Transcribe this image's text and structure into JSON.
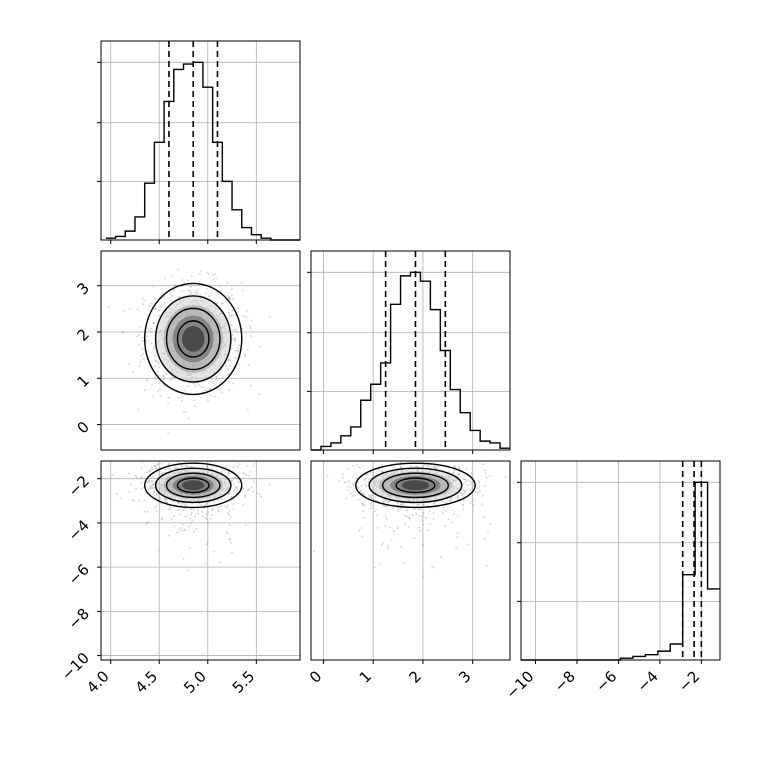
{
  "figure": {
    "title": "",
    "style": {
      "hist_color": "#000000",
      "quantile_color": "#000000",
      "scatter_color": "#9a9a9a",
      "grid_color": "#b0b0b0",
      "background": "#ffffff"
    }
  },
  "chart_data": [
    {
      "type": "histogram",
      "panel": "hist-param1",
      "x": [
        4.0,
        4.1,
        4.2,
        4.3,
        4.4,
        4.5,
        4.6,
        4.7,
        4.8,
        4.9,
        5.0,
        5.1,
        5.2,
        5.3,
        5.4,
        5.5,
        5.6,
        5.7,
        5.8,
        5.9
      ],
      "values": [
        0.01,
        0.02,
        0.05,
        0.13,
        0.32,
        0.55,
        0.78,
        0.96,
        0.99,
        1.0,
        0.86,
        0.55,
        0.33,
        0.17,
        0.07,
        0.03,
        0.01,
        0.0,
        0.0,
        0.0
      ],
      "quantiles": [
        4.6,
        4.85,
        5.1
      ],
      "xlim": [
        3.9,
        5.95
      ],
      "ylim": [
        0,
        1.0
      ],
      "xticks": [
        4.0,
        4.5,
        5.0,
        5.5
      ],
      "xtick_labels": [
        "4.0",
        "4.5",
        "5.0",
        "5.5"
      ],
      "grid": true
    },
    {
      "type": "histogram",
      "panel": "hist-param2",
      "x": [
        -0.15,
        0.05,
        0.25,
        0.45,
        0.65,
        0.85,
        1.05,
        1.25,
        1.45,
        1.65,
        1.85,
        2.05,
        2.25,
        2.45,
        2.65,
        2.85,
        3.05,
        3.25,
        3.45,
        3.65
      ],
      "values": [
        0.0,
        0.02,
        0.04,
        0.08,
        0.13,
        0.28,
        0.37,
        0.49,
        0.82,
        0.98,
        1.0,
        0.95,
        0.79,
        0.56,
        0.34,
        0.21,
        0.11,
        0.05,
        0.04,
        0.01
      ],
      "quantiles": [
        1.25,
        1.85,
        2.45
      ],
      "xlim": [
        -0.25,
        3.75
      ],
      "ylim": [
        0,
        1.0
      ],
      "xticks": [
        0,
        1,
        2,
        3
      ],
      "xtick_labels": [
        "0",
        "1",
        "2",
        "3"
      ],
      "grid": true
    },
    {
      "type": "histogram",
      "panel": "hist-param3",
      "x": [
        -10.4,
        -9.8,
        -9.2,
        -8.6,
        -8.0,
        -7.4,
        -6.8,
        -6.2,
        -5.6,
        -5.0,
        -4.4,
        -3.8,
        -3.2,
        -2.6,
        -2.0,
        -1.4
      ],
      "values": [
        0.0,
        0.0,
        0.0,
        0.0,
        0.0,
        0.0,
        0.0,
        0.0,
        0.01,
        0.02,
        0.03,
        0.05,
        0.09,
        0.48,
        1.0,
        0.4
      ],
      "quantiles": [
        -2.9,
        -2.35,
        -2.0
      ],
      "xlim": [
        -10.7,
        -1.1
      ],
      "ylim": [
        0,
        1.0
      ],
      "xticks": [
        -10,
        -8,
        -6,
        -4,
        -2
      ],
      "xtick_labels": [
        "−10",
        "−8",
        "−6",
        "−4",
        "−2"
      ],
      "grid": true
    },
    {
      "type": "scatter",
      "panel": "joint-param1-param2",
      "x_center": 4.85,
      "y_center": 1.85,
      "x_spread": 0.25,
      "y_spread": 0.6,
      "contour_levels": 4,
      "xlim": [
        3.9,
        5.95
      ],
      "ylim": [
        -0.55,
        3.75
      ],
      "yticks": [
        0,
        1,
        2,
        3
      ],
      "ytick_labels": [
        "0",
        "1",
        "2",
        "3"
      ],
      "grid": true
    },
    {
      "type": "scatter",
      "panel": "joint-param1-param3",
      "x_center": 4.85,
      "y_center": -2.3,
      "x_spread": 0.25,
      "y_spread": 0.5,
      "contour_levels": 4,
      "xlim": [
        3.9,
        5.95
      ],
      "ylim": [
        -10.2,
        -1.2
      ],
      "xticks": [
        4.0,
        4.5,
        5.0,
        5.5
      ],
      "xtick_labels": [
        "4.0",
        "4.5",
        "5.0",
        "5.5"
      ],
      "yticks": [
        -10,
        -8,
        -6,
        -4,
        -2
      ],
      "ytick_labels": [
        "−10",
        "−8",
        "−6",
        "−4",
        "−2"
      ],
      "grid": true
    },
    {
      "type": "scatter",
      "panel": "joint-param2-param3",
      "x_center": 1.85,
      "y_center": -2.3,
      "x_spread": 0.6,
      "y_spread": 0.5,
      "contour_levels": 4,
      "xlim": [
        -0.25,
        3.75
      ],
      "ylim": [
        -10.2,
        -1.2
      ],
      "xticks": [
        0,
        1,
        2,
        3
      ],
      "xtick_labels": [
        "0",
        "1",
        "2",
        "3"
      ],
      "grid": true
    }
  ]
}
